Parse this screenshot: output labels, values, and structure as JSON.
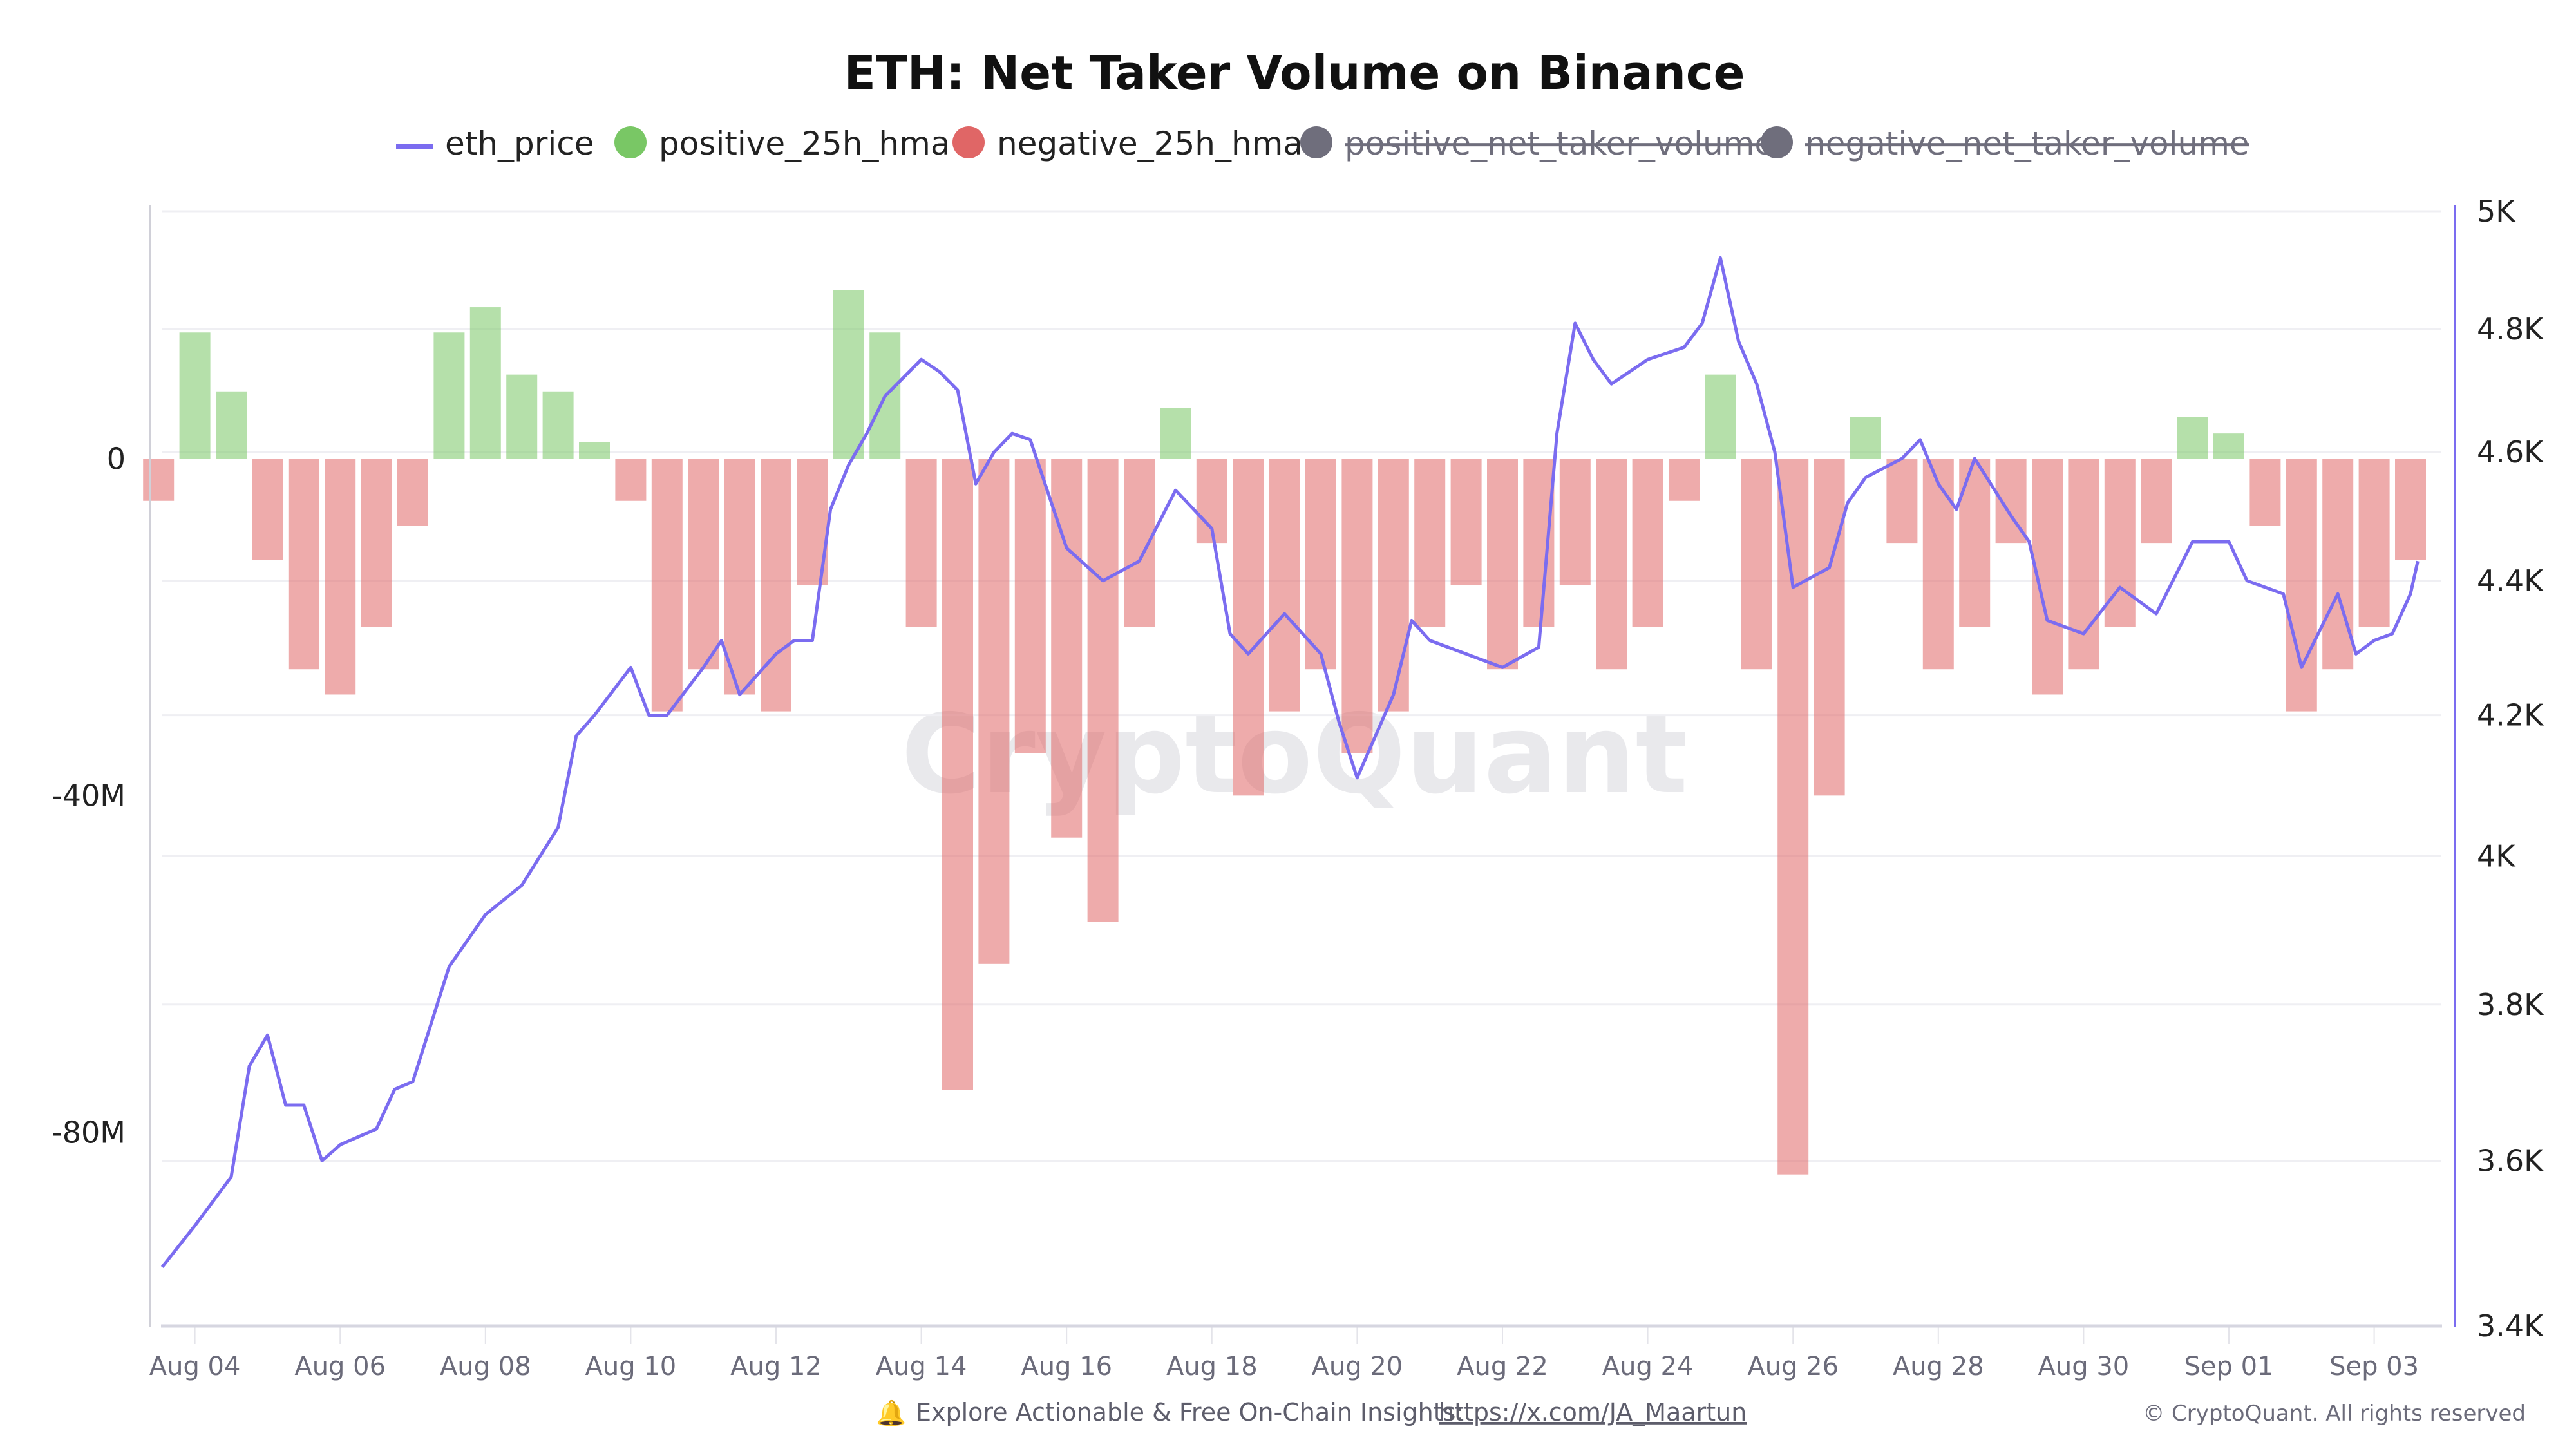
{
  "chart_data": {
    "type": "bar+line",
    "title": "ETH: Net Taker Volume on Binance",
    "legend": [
      {
        "name": "eth_price",
        "color": "#7b6cf0",
        "marker": "line",
        "enabled": true
      },
      {
        "name": "positive_25h_hma",
        "color": "#79c765",
        "marker": "dot",
        "enabled": true
      },
      {
        "name": "negative_25h_hma",
        "color": "#e06666",
        "marker": "dot",
        "enabled": true
      },
      {
        "name": "positive_net_taker_volume",
        "color": "#6f6e7c",
        "marker": "dot",
        "enabled": false
      },
      {
        "name": "negative_net_taker_volume",
        "color": "#6f6e7c",
        "marker": "dot",
        "enabled": false
      }
    ],
    "legend_position": "top",
    "left_axis": {
      "ticks": [
        0,
        -40,
        -80
      ],
      "tick_labels": [
        "0",
        "-40M",
        "-80M"
      ],
      "unit": "M",
      "ylim": [
        -103,
        29.4
      ]
    },
    "right_axis": {
      "scale": "log",
      "ticks": [
        5000,
        4800,
        4600,
        4400,
        4200,
        4000,
        3800,
        3600,
        3400
      ],
      "tick_labels": [
        "5K",
        "4.8K",
        "4.6K",
        "4.4K",
        "4.2K",
        "4K",
        "3.8K",
        "3.6K",
        "3.4K"
      ],
      "ylim": [
        3400,
        5000
      ]
    },
    "x_tick_labels": [
      "Aug 04",
      "Aug 06",
      "Aug 08",
      "Aug 10",
      "Aug 12",
      "Aug 14",
      "Aug 16",
      "Aug 18",
      "Aug 20",
      "Aug 22",
      "Aug 24",
      "Aug 26",
      "Aug 28",
      "Aug 30",
      "Sep 01",
      "Sep 03"
    ],
    "grid": true,
    "eth_price": {
      "days_from_aug04": [
        -0.45,
        0,
        0.5,
        0.75,
        1,
        1.25,
        1.5,
        1.75,
        2,
        2.5,
        2.75,
        3,
        3.5,
        4,
        4.5,
        5,
        5.25,
        5.5,
        6,
        6.25,
        6.5,
        7,
        7.25,
        7.5,
        8,
        8.25,
        8.5,
        8.75,
        9,
        9.25,
        9.5,
        10,
        10.25,
        10.5,
        10.75,
        11,
        11.25,
        11.5,
        12,
        12.5,
        13,
        13.5,
        14,
        14.25,
        14.5,
        15,
        15.5,
        15.75,
        16,
        16.5,
        16.75,
        17,
        17.5,
        18,
        18.5,
        18.75,
        19,
        19.25,
        19.5,
        20,
        20.5,
        20.75,
        21,
        21.25,
        21.5,
        21.75,
        22,
        22.5,
        22.75,
        23,
        23.5,
        23.75,
        24,
        24.25,
        24.5,
        25,
        25.25,
        25.5,
        26,
        26.5,
        27,
        27.5,
        28,
        28.25,
        28.5,
        28.75,
        29,
        29.5,
        29.75,
        30,
        30.25,
        30.5,
        30.6
      ],
      "values": [
        3470,
        3520,
        3580,
        3720,
        3760,
        3670,
        3670,
        3600,
        3620,
        3640,
        3690,
        3700,
        3850,
        3920,
        3960,
        4040,
        4170,
        4200,
        4270,
        4200,
        4200,
        4270,
        4310,
        4230,
        4290,
        4310,
        4310,
        4510,
        4580,
        4630,
        4690,
        4750,
        4730,
        4700,
        4550,
        4600,
        4630,
        4620,
        4450,
        4400,
        4430,
        4540,
        4480,
        4320,
        4290,
        4350,
        4290,
        4190,
        4110,
        4230,
        4340,
        4310,
        4290,
        4270,
        4300,
        4630,
        4810,
        4750,
        4710,
        4750,
        4770,
        4810,
        4920,
        4780,
        4710,
        4600,
        4390,
        4420,
        4520,
        4560,
        4590,
        4620,
        4550,
        4510,
        4590,
        4500,
        4460,
        4340,
        4320,
        4390,
        4350,
        4460,
        4460,
        4400,
        4390,
        4380,
        4270,
        4380,
        4290,
        4310,
        4320,
        4380,
        4430
      ]
    },
    "net_taker_volume_25h_hma": {
      "days_from_aug04": [
        -0.5,
        0,
        0.5,
        1,
        1.5,
        2,
        2.5,
        3,
        3.5,
        4,
        4.5,
        5,
        5.5,
        6,
        6.5,
        7,
        7.5,
        8,
        8.5,
        9,
        9.5,
        10,
        10.5,
        11,
        11.5,
        12,
        12.5,
        13,
        13.5,
        14,
        14.5,
        15,
        15.5,
        16,
        16.5,
        17,
        17.5,
        18,
        18.5,
        19,
        19.5,
        20,
        20.5,
        21,
        21.5,
        22,
        22.5,
        23,
        23.5,
        24,
        24.5,
        25,
        25.5,
        26,
        26.5,
        27,
        27.5,
        28,
        28.5,
        29,
        29.5,
        30,
        30.5
      ],
      "values_millions": [
        -5,
        15,
        8,
        -12,
        -25,
        -28,
        -20,
        -8,
        15,
        18,
        10,
        8,
        2,
        -5,
        -30,
        -25,
        -28,
        -30,
        -15,
        20,
        15,
        -20,
        -75,
        -60,
        -35,
        -45,
        -55,
        -20,
        6,
        -10,
        -40,
        -30,
        -25,
        -35,
        -30,
        -20,
        -15,
        -25,
        -20,
        -15,
        -25,
        -20,
        -5,
        10,
        -25,
        -85,
        -40,
        5,
        -10,
        -25,
        -20,
        -10,
        -28,
        -25,
        -20,
        -10,
        5,
        3,
        -8,
        -30,
        -25,
        -20,
        -12
      ]
    }
  },
  "watermark": "CryptoQuant",
  "footer": {
    "text": "Explore Actionable & Free On-Chain Insights:",
    "link": "https://x.com/JA_Maartun",
    "copyright": "© CryptoQuant. All rights reserved"
  }
}
